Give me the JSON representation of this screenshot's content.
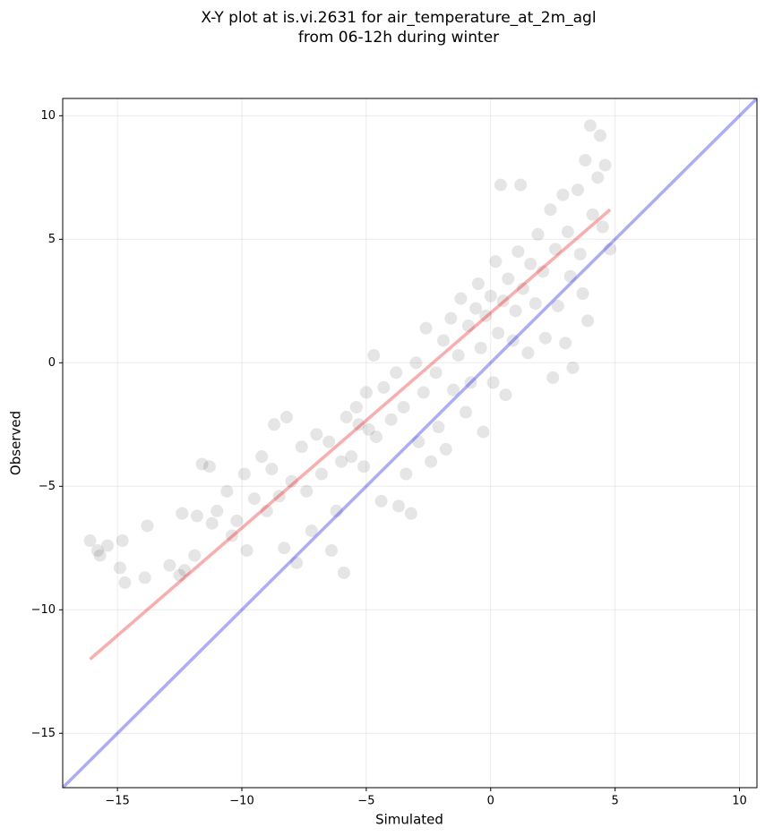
{
  "chart_data": {
    "type": "scatter",
    "title": [
      "X-Y plot at is.vi.2631 for air_temperature_at_2m_agl",
      "from 06-12h during winter"
    ],
    "xlabel": "Simulated",
    "ylabel": "Observed",
    "xlim": [
      -17.2,
      10.7
    ],
    "ylim": [
      -17.2,
      10.7
    ],
    "xticks": [
      {
        "value": -15,
        "label": "−15"
      },
      {
        "value": -10,
        "label": "−10"
      },
      {
        "value": -5,
        "label": "−5"
      },
      0,
      5,
      10
    ],
    "yticks": [
      {
        "value": -15,
        "label": "−15"
      },
      {
        "value": -10,
        "label": "−10"
      },
      {
        "value": -5,
        "label": "−5"
      },
      0,
      5,
      10
    ],
    "grid": true,
    "color": "#000000",
    "opacity": 0.1,
    "x": [
      -16.1,
      -15.8,
      -15.7,
      -15.4,
      -14.9,
      -14.8,
      -14.7,
      -13.9,
      -13.8,
      -12.9,
      -12.5,
      -12.3,
      -12.4,
      -11.9,
      -11.8,
      -11.6,
      -11.3,
      -11.2,
      -11.0,
      -10.6,
      -10.4,
      -10.2,
      -9.9,
      -9.8,
      -9.5,
      -9.2,
      -9.0,
      -8.8,
      -8.7,
      -8.5,
      -8.3,
      -8.2,
      -8.0,
      -7.8,
      -7.6,
      -7.4,
      -7.2,
      -7.0,
      -6.8,
      -6.5,
      -6.4,
      -6.2,
      -6.0,
      -5.9,
      -5.8,
      -5.6,
      -5.4,
      -5.3,
      -5.1,
      -5.0,
      -4.9,
      -4.7,
      -4.6,
      -4.4,
      -4.3,
      -4.0,
      -3.8,
      -3.7,
      -3.5,
      -3.4,
      -3.2,
      -3.0,
      -2.9,
      -2.7,
      -2.6,
      -2.4,
      -2.2,
      -2.1,
      -1.9,
      -1.8,
      -1.6,
      -1.5,
      -1.3,
      -1.2,
      -1.0,
      -0.9,
      -0.8,
      -0.6,
      -0.5,
      -0.4,
      -0.3,
      -0.2,
      0.0,
      0.1,
      0.2,
      0.3,
      0.4,
      0.5,
      0.6,
      0.7,
      0.9,
      1.0,
      1.1,
      1.2,
      1.3,
      1.5,
      1.6,
      1.8,
      1.9,
      2.1,
      2.2,
      2.4,
      2.5,
      2.6,
      2.7,
      2.9,
      3.1,
      3.2,
      3.3,
      3.5,
      3.6,
      3.7,
      3.8,
      3.9,
      4.0,
      4.1,
      4.3,
      4.4,
      4.5,
      4.6,
      4.8,
      3.0
    ],
    "y": [
      -7.2,
      -7.6,
      -7.8,
      -7.4,
      -8.3,
      -7.2,
      -8.9,
      -8.7,
      -6.6,
      -8.2,
      -8.6,
      -8.4,
      -6.1,
      -7.8,
      -6.2,
      -4.1,
      -4.2,
      -6.5,
      -6.0,
      -5.2,
      -7.0,
      -6.4,
      -4.5,
      -7.6,
      -5.5,
      -3.8,
      -6.0,
      -4.3,
      -2.5,
      -5.4,
      -7.5,
      -2.2,
      -4.8,
      -8.1,
      -3.4,
      -5.2,
      -6.8,
      -2.9,
      -4.5,
      -3.2,
      -7.6,
      -6.0,
      -4.0,
      -8.5,
      -2.2,
      -3.8,
      -1.8,
      -2.5,
      -4.2,
      -1.2,
      -2.7,
      0.3,
      -3.0,
      -5.6,
      -1.0,
      -2.3,
      -0.4,
      -5.8,
      -1.8,
      -4.5,
      -6.1,
      0.0,
      -3.2,
      -1.2,
      1.4,
      -4.0,
      -0.4,
      -2.6,
      0.9,
      -3.5,
      1.8,
      -1.1,
      0.3,
      2.6,
      -2.0,
      1.5,
      -0.8,
      2.2,
      3.2,
      0.6,
      -2.8,
      1.9,
      2.7,
      -0.8,
      4.1,
      1.2,
      7.2,
      2.5,
      -1.3,
      3.4,
      0.9,
      2.1,
      4.5,
      7.2,
      3.0,
      0.4,
      4.0,
      2.4,
      5.2,
      3.7,
      1.0,
      6.2,
      -0.6,
      4.6,
      2.3,
      6.8,
      5.3,
      3.5,
      -0.2,
      7.0,
      4.4,
      2.8,
      8.2,
      1.7,
      9.6,
      6.0,
      7.5,
      9.2,
      5.5,
      8.0,
      4.6,
      0.8
    ],
    "lines": [
      {
        "x": [
          -17.2,
          10.7
        ],
        "y": [
          -17.2,
          10.7
        ],
        "color": "#0000ff"
      },
      {
        "x": [
          -16.1,
          4.8
        ],
        "y": [
          -12.0,
          6.2
        ],
        "color": "#ff0000"
      }
    ]
  }
}
